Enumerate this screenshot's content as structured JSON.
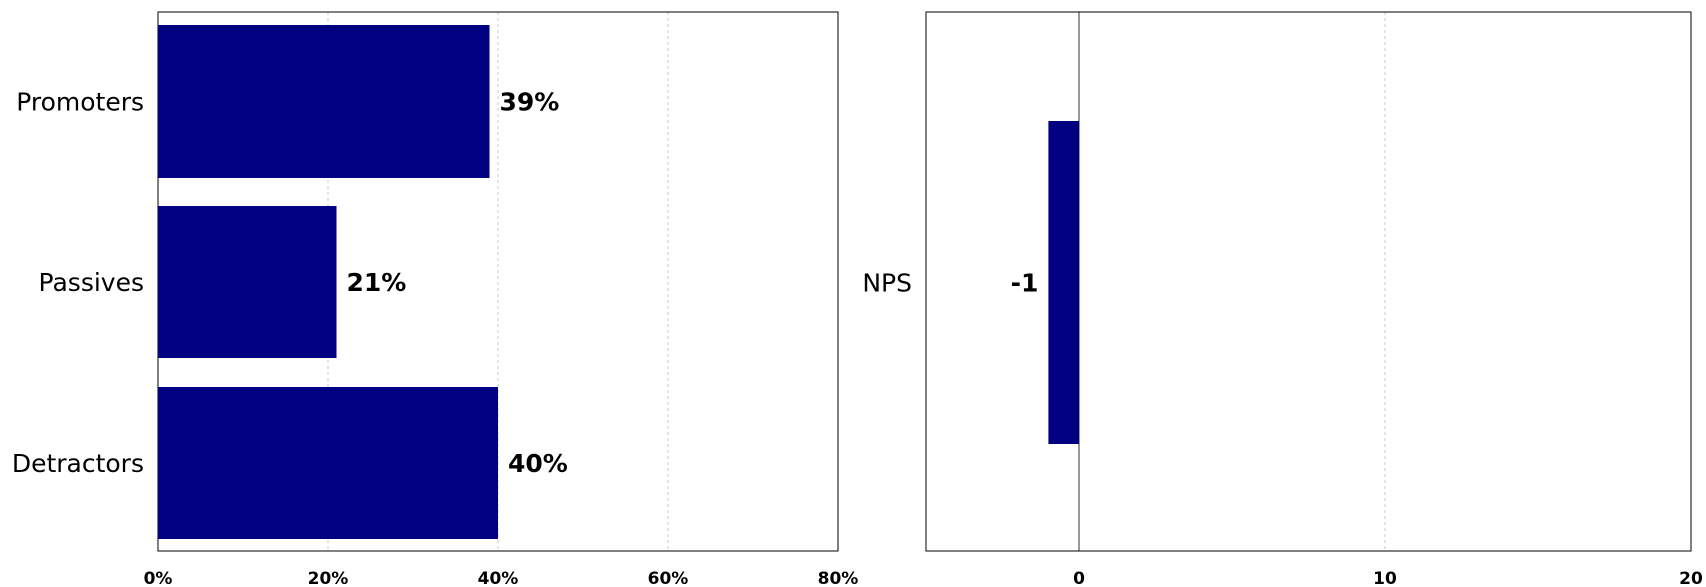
{
  "chart_data": [
    {
      "type": "bar",
      "orientation": "horizontal",
      "categories": [
        "Promoters",
        "Passives",
        "Detractors"
      ],
      "values": [
        39,
        21,
        40
      ],
      "value_labels": [
        "39%",
        "21%",
        "40%"
      ],
      "xlim": [
        0,
        80
      ],
      "xticks": [
        0,
        20,
        40,
        60,
        80
      ],
      "xtick_labels": [
        "0%",
        "20%",
        "40%",
        "60%",
        "80%"
      ],
      "bar_color": "#000080",
      "grid": "vertical-dashed"
    },
    {
      "type": "bar",
      "orientation": "horizontal",
      "categories": [
        "NPS"
      ],
      "values": [
        -1
      ],
      "value_labels": [
        "-1"
      ],
      "xlim": [
        -5,
        20
      ],
      "xticks": [
        0,
        10,
        20
      ],
      "xtick_labels": [
        "0",
        "10",
        "20"
      ],
      "bar_color": "#000080",
      "grid": "vertical-dashed"
    }
  ]
}
